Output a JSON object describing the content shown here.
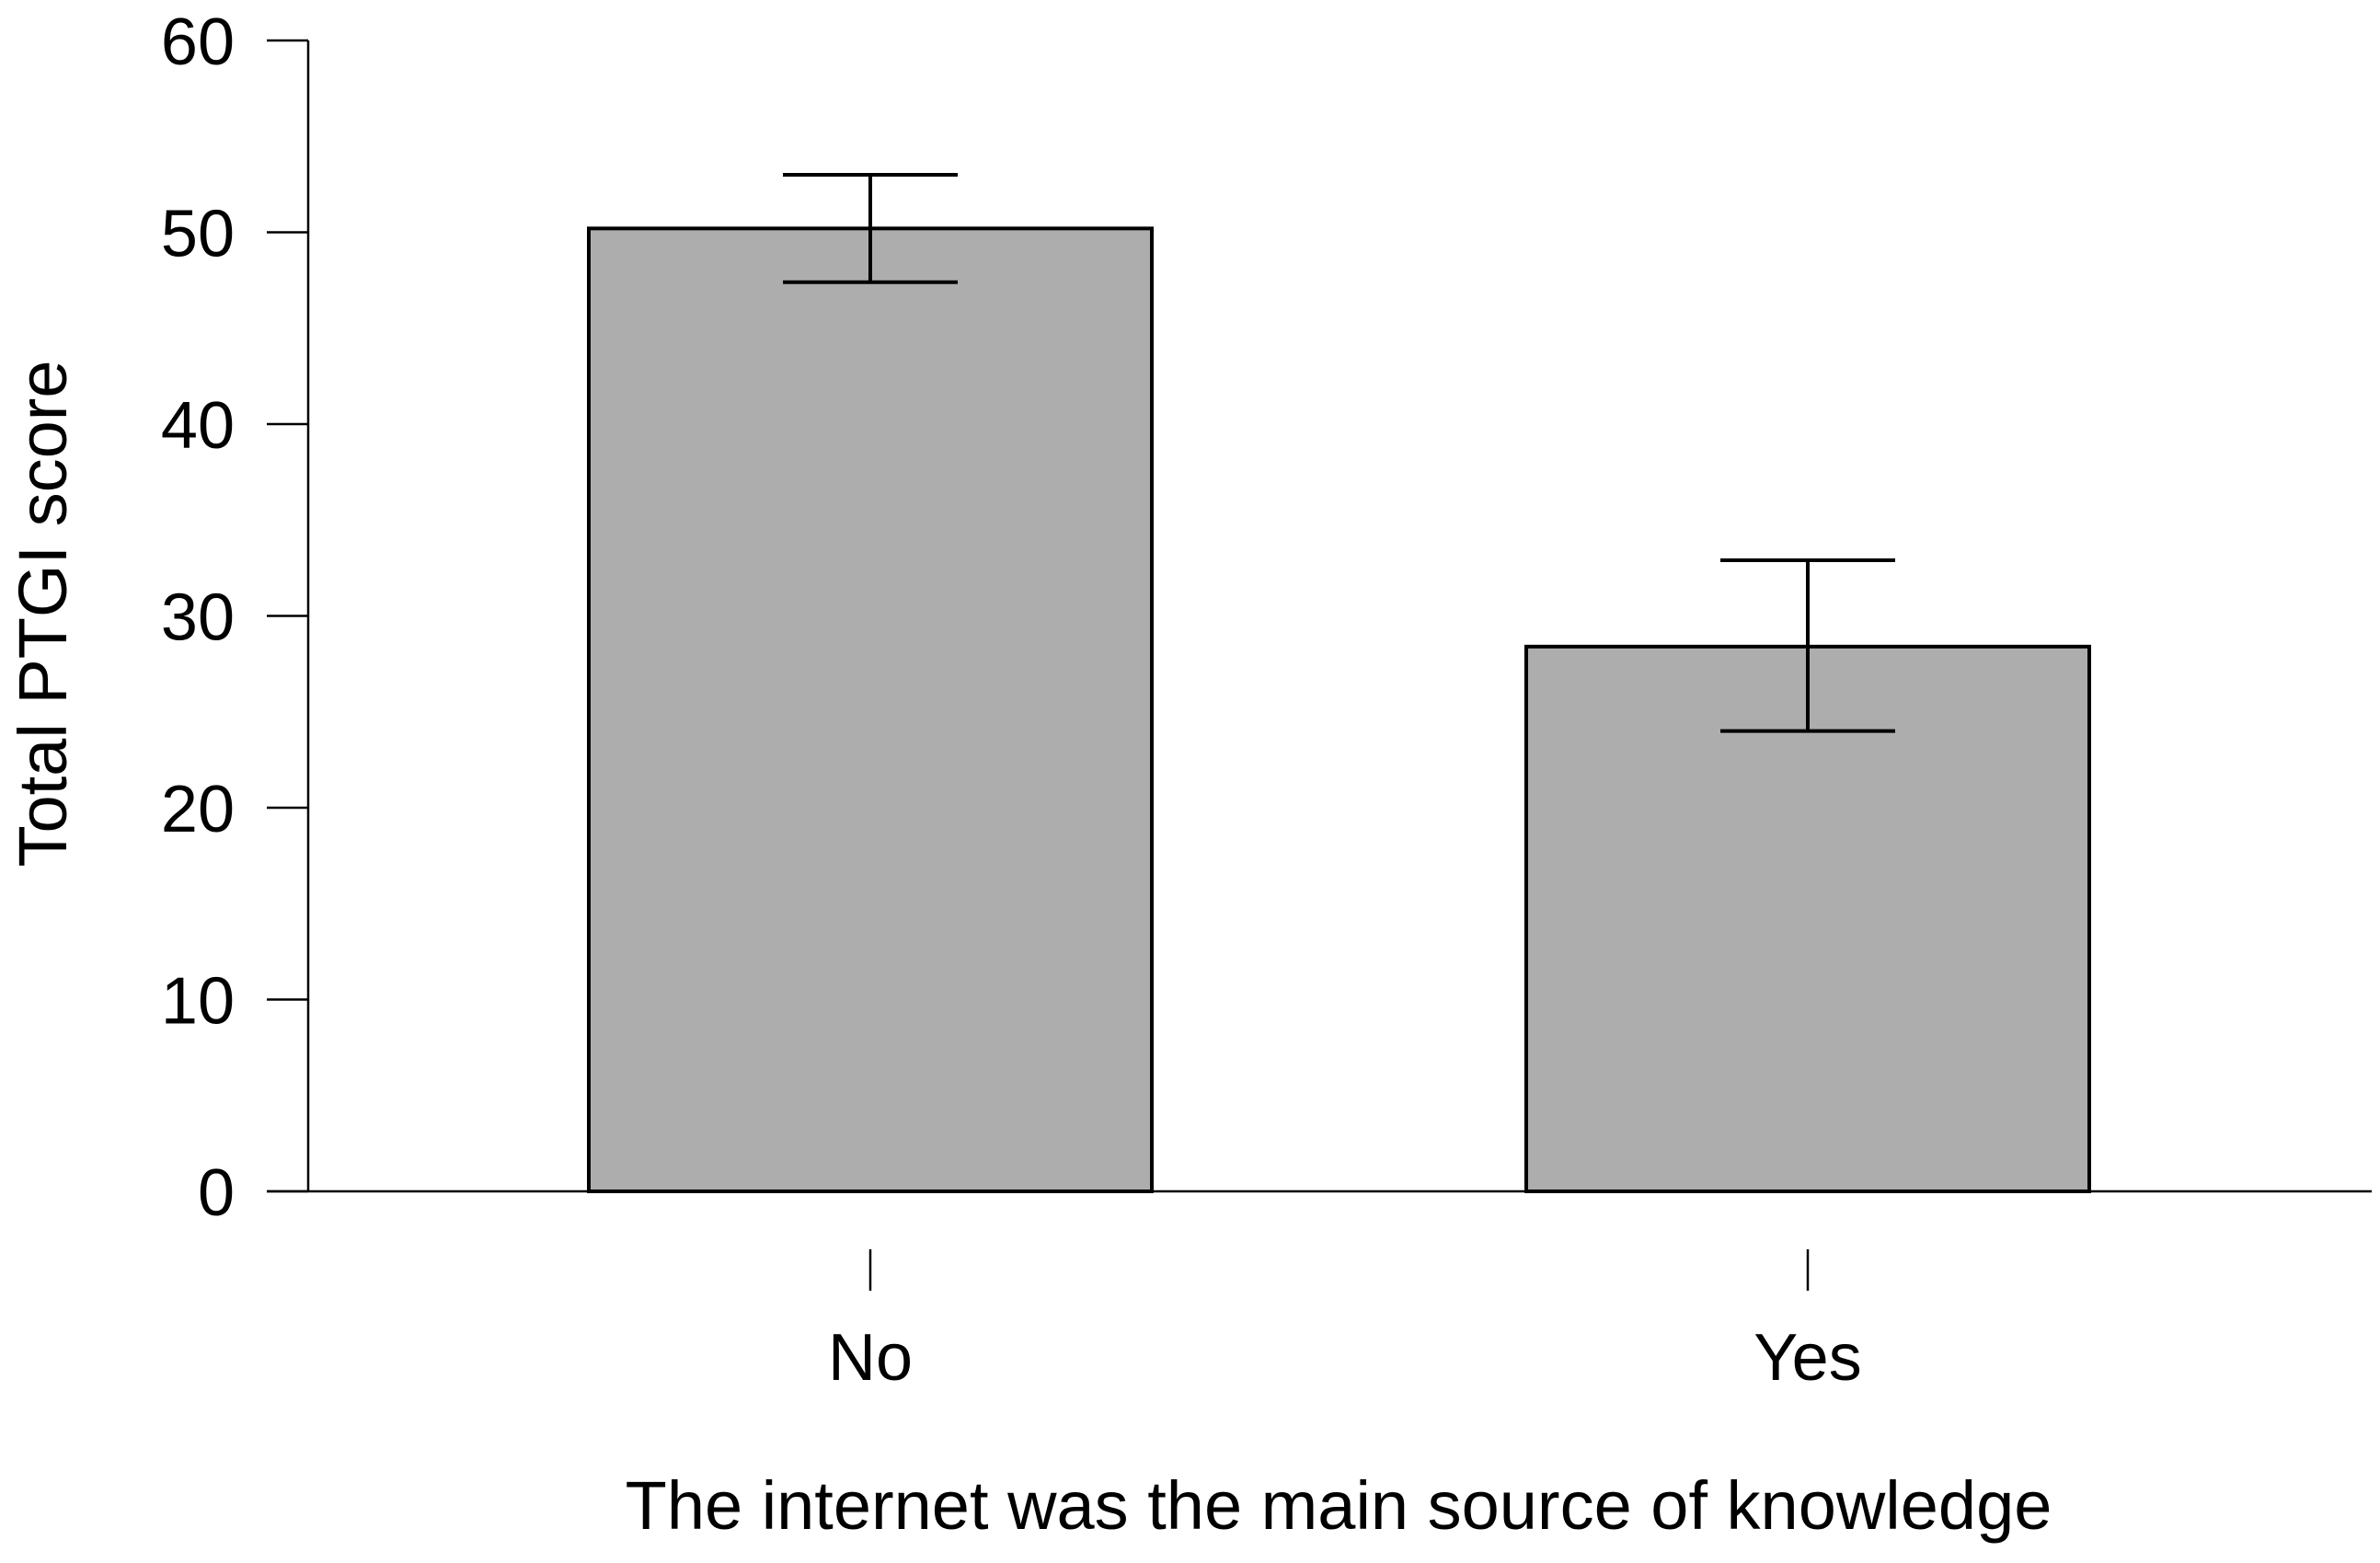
{
  "chart_data": {
    "type": "bar",
    "categories": [
      "No",
      "Yes"
    ],
    "values": [
      50.2,
      28.4
    ],
    "error_low": [
      47.4,
      24.0
    ],
    "error_high": [
      53.0,
      32.9
    ],
    "xlabel": "The internet was the main source of knowledge",
    "ylabel": "Total PTGI score",
    "ylim": [
      0,
      60
    ],
    "yticks": [
      "0",
      "10",
      "20",
      "30",
      "40",
      "50",
      "60"
    ],
    "grid": false,
    "bar_color": "#adadad",
    "edge_color": "#000000"
  }
}
